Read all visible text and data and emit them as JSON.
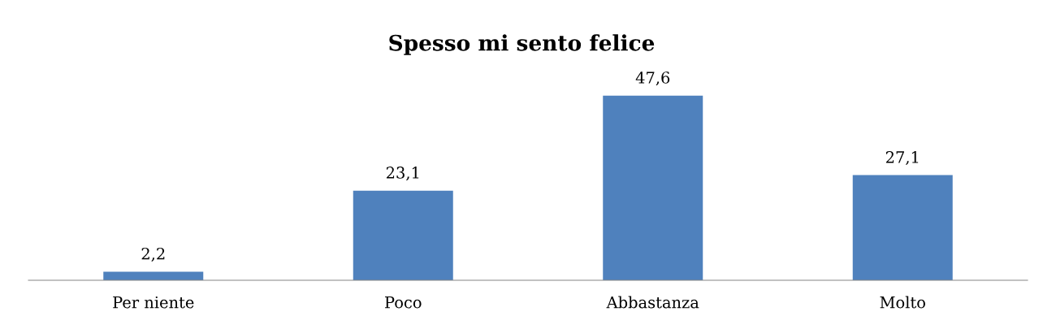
{
  "chart_data": {
    "type": "bar",
    "title": "Spesso mi sento felice",
    "categories": [
      "Per niente",
      "Poco",
      "Abbastanza",
      "Molto"
    ],
    "values": [
      2.2,
      23.1,
      47.6,
      27.1
    ],
    "value_labels": [
      "2,2",
      "23,1",
      "47,6",
      "27,1"
    ],
    "color": "#4f81bd"
  }
}
